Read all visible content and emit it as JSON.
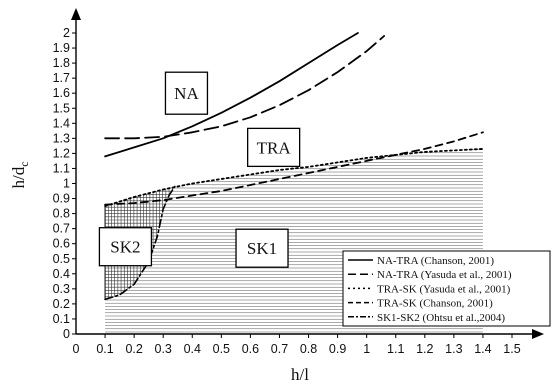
{
  "chart_data": {
    "type": "line",
    "xlabel": "h/l",
    "ylabel": "h/d",
    "ylabel_subscript": "c",
    "xlim": [
      0,
      1.5
    ],
    "ylim": [
      0,
      2.0
    ],
    "x_ticks": [
      "0",
      "0.1",
      "0.2",
      "0.3",
      "0.4",
      "0.5",
      "0.6",
      "0.7",
      "0.8",
      "0.9",
      "1",
      "1.1",
      "1.2",
      "1.3",
      "1.4",
      "1.5"
    ],
    "y_ticks": [
      "0",
      "0.1",
      "0.2",
      "0.3",
      "0.4",
      "0.5",
      "0.6",
      "0.7",
      "0.8",
      "0.9",
      "1",
      "1.1",
      "1.2",
      "1.3",
      "1.4",
      "1.5",
      "1.6",
      "1.7",
      "1.8",
      "1.9",
      "2"
    ],
    "regions": [
      {
        "label": "NA",
        "x": 0.38,
        "y": 1.6
      },
      {
        "label": "TRA",
        "x": 0.68,
        "y": 1.24
      },
      {
        "label": "SK2",
        "x": 0.17,
        "y": 0.58
      },
      {
        "label": "SK1",
        "x": 0.64,
        "y": 0.57
      }
    ],
    "series": [
      {
        "name": "NA-TRA (Chanson, 2001)",
        "style": "solid",
        "x": [
          0.1,
          0.2,
          0.3,
          0.4,
          0.5,
          0.6,
          0.7,
          0.8,
          0.9,
          0.97
        ],
        "y": [
          1.18,
          1.24,
          1.3,
          1.38,
          1.47,
          1.57,
          1.68,
          1.8,
          1.92,
          2.0
        ]
      },
      {
        "name": "NA-TRA (Yasuda et al., 2001)",
        "style": "longdash",
        "x": [
          0.1,
          0.2,
          0.3,
          0.4,
          0.5,
          0.6,
          0.7,
          0.8,
          0.9,
          1.0,
          1.06
        ],
        "y": [
          1.3,
          1.3,
          1.31,
          1.34,
          1.38,
          1.44,
          1.52,
          1.62,
          1.74,
          1.88,
          1.98
        ]
      },
      {
        "name": "TRA-SK (Yasuda et al., 2001)",
        "style": "dotted",
        "x": [
          0.1,
          0.2,
          0.3,
          0.4,
          0.5,
          0.6,
          0.7,
          0.8,
          0.9,
          1.0,
          1.1,
          1.2,
          1.3,
          1.4
        ],
        "y": [
          0.85,
          0.91,
          0.96,
          1.0,
          1.03,
          1.06,
          1.09,
          1.11,
          1.14,
          1.17,
          1.19,
          1.21,
          1.22,
          1.23
        ]
      },
      {
        "name": "TRA-SK (Chanson, 2001)",
        "style": "dash",
        "x": [
          0.1,
          0.2,
          0.3,
          0.4,
          0.5,
          0.6,
          0.7,
          0.8,
          0.9,
          1.0,
          1.1,
          1.2,
          1.3,
          1.4
        ],
        "y": [
          0.86,
          0.87,
          0.89,
          0.92,
          0.95,
          0.99,
          1.03,
          1.07,
          1.11,
          1.15,
          1.19,
          1.23,
          1.28,
          1.34
        ]
      },
      {
        "name": "SK1-SK2 (Ohtsu et al.,2004)",
        "style": "dashdot",
        "x": [
          0.1,
          0.15,
          0.2,
          0.25,
          0.28,
          0.3,
          0.32,
          0.34
        ],
        "y": [
          0.23,
          0.26,
          0.33,
          0.48,
          0.65,
          0.83,
          0.92,
          0.98
        ]
      }
    ]
  }
}
